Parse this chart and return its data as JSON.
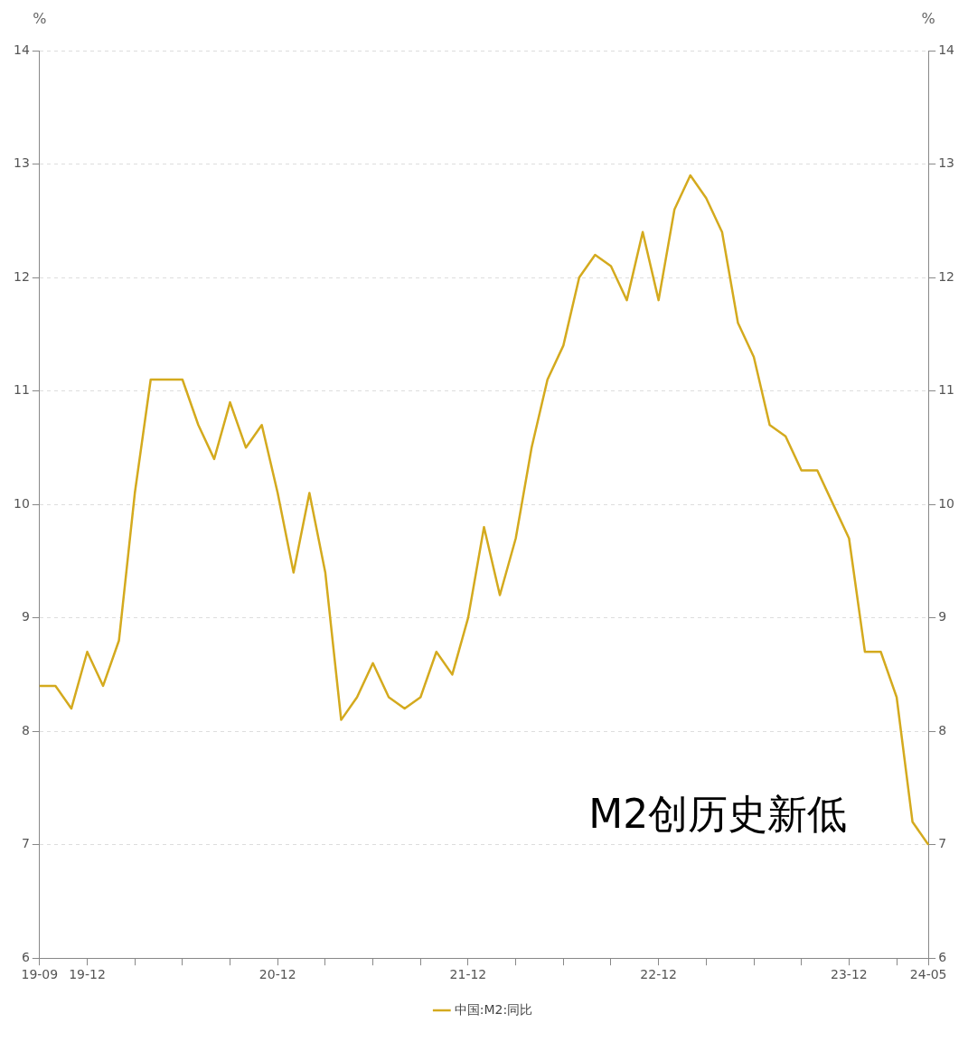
{
  "chart_data": {
    "type": "line",
    "ylabel": "%",
    "y2label": "%",
    "legend": "bottom",
    "grid": "y",
    "marker": "none",
    "line_style": "solid",
    "categories": [
      "19-09",
      null,
      null,
      "19-12",
      null,
      null,
      null,
      null,
      null,
      null,
      null,
      null,
      null,
      null,
      null,
      "20-12",
      null,
      null,
      null,
      null,
      null,
      null,
      null,
      null,
      null,
      null,
      null,
      "21-12",
      null,
      null,
      null,
      null,
      null,
      null,
      null,
      null,
      null,
      null,
      null,
      "22-12",
      null,
      null,
      null,
      null,
      null,
      null,
      null,
      null,
      null,
      null,
      null,
      "23-12",
      null,
      null,
      null,
      null,
      "24-05"
    ],
    "series": [
      {
        "name": "中国:M2:同比",
        "color": "#d4aa1e",
        "values": [
          8.4,
          8.4,
          8.2,
          8.7,
          8.4,
          8.8,
          10.1,
          11.1,
          11.1,
          11.1,
          10.7,
          10.4,
          10.9,
          10.5,
          10.7,
          10.1,
          9.4,
          10.1,
          9.4,
          8.1,
          8.3,
          8.6,
          8.3,
          8.2,
          8.3,
          8.7,
          8.5,
          9.0,
          9.8,
          9.2,
          9.7,
          10.5,
          11.1,
          11.4,
          12.0,
          12.2,
          12.1,
          11.8,
          12.4,
          11.8,
          12.6,
          12.9,
          12.7,
          12.4,
          11.6,
          11.3,
          10.7,
          10.6,
          10.3,
          10.3,
          10.0,
          9.7,
          8.7,
          8.7,
          8.3,
          7.2,
          7.0
        ]
      }
    ],
    "ylim": [
      6,
      14
    ],
    "yticks": [
      6,
      7,
      8,
      9,
      10,
      11,
      12,
      13,
      14
    ],
    "y2lim": [
      6,
      14
    ],
    "y2ticks": [
      6,
      7,
      8,
      9,
      10,
      11,
      12,
      13,
      14
    ],
    "annotations": [
      "M2创历史新低"
    ]
  }
}
